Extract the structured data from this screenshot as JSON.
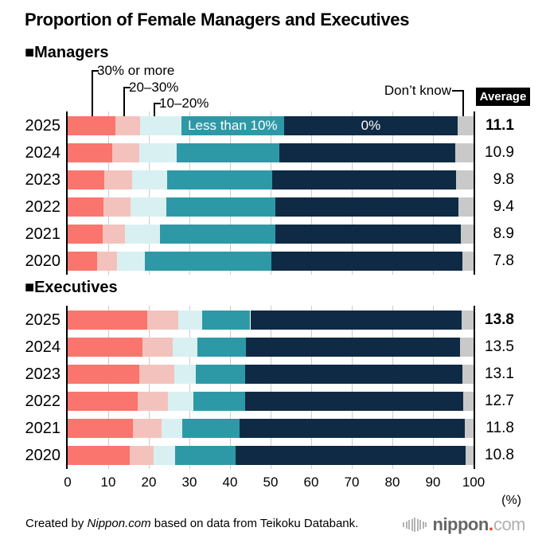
{
  "title": "Proportion of Female Managers and Executives",
  "sections": [
    {
      "heading": "■Managers"
    },
    {
      "heading": "■Executives"
    }
  ],
  "legend": {
    "callout_labels": [
      "30% or more",
      "20–30%",
      "10–20%"
    ],
    "dont_know_label": "Don’t know",
    "average_label": "Average"
  },
  "axis": {
    "ticks": [
      "0",
      "10",
      "20",
      "30",
      "40",
      "50",
      "60",
      "70",
      "80",
      "90",
      "100"
    ],
    "unit": "(%)"
  },
  "chart_data": [
    {
      "type": "bar",
      "stacked": true,
      "orientation": "horizontal",
      "section": "Managers",
      "xlim": [
        0,
        100
      ],
      "categories": [
        "30% or more",
        "20–30%",
        "10–20%",
        "Less than 10%",
        "0%",
        "Don't know"
      ],
      "rows": [
        {
          "year": "2025",
          "values": [
            11.7,
            6.2,
            10.1,
            25.3,
            42.8,
            3.9
          ],
          "average": "11.1",
          "emphasis": true
        },
        {
          "year": "2024",
          "values": [
            10.9,
            6.8,
            9.1,
            25.4,
            43.2,
            4.6
          ],
          "average": "10.9",
          "emphasis": false
        },
        {
          "year": "2023",
          "values": [
            9.1,
            6.8,
            8.6,
            25.9,
            45.3,
            4.3
          ],
          "average": "9.8",
          "emphasis": false
        },
        {
          "year": "2022",
          "values": [
            8.9,
            6.5,
            8.9,
            26.8,
            45.2,
            3.7
          ],
          "average": "9.4",
          "emphasis": false
        },
        {
          "year": "2021",
          "values": [
            8.6,
            5.6,
            8.6,
            28.4,
            45.6,
            3.2
          ],
          "average": "8.9",
          "emphasis": false
        },
        {
          "year": "2020",
          "values": [
            7.2,
            5.0,
            6.9,
            31.1,
            47.1,
            2.7
          ],
          "average": "7.8",
          "emphasis": false
        }
      ],
      "inbar_labels": [
        {
          "row": 0,
          "segment": 3,
          "text": "Less than 10%"
        },
        {
          "row": 0,
          "segment": 4,
          "text": "0%"
        }
      ]
    },
    {
      "type": "bar",
      "stacked": true,
      "orientation": "horizontal",
      "section": "Executives",
      "xlim": [
        0,
        100
      ],
      "categories": [
        "30% or more",
        "20–30%",
        "10–20%",
        "Less than 10%",
        "0%",
        "Don't know"
      ],
      "rows": [
        {
          "year": "2025",
          "values": [
            19.7,
            7.5,
            5.9,
            11.9,
            52.0,
            3.0
          ],
          "average": "13.8",
          "emphasis": true
        },
        {
          "year": "2024",
          "values": [
            18.4,
            7.5,
            6.1,
            11.9,
            52.8,
            3.3
          ],
          "average": "13.5",
          "emphasis": false
        },
        {
          "year": "2023",
          "values": [
            17.7,
            8.6,
            5.2,
            12.3,
            53.5,
            2.7
          ],
          "average": "13.1",
          "emphasis": false
        },
        {
          "year": "2022",
          "values": [
            17.3,
            7.5,
            6.2,
            12.8,
            53.6,
            2.6
          ],
          "average": "12.7",
          "emphasis": false
        },
        {
          "year": "2021",
          "values": [
            16.0,
            7.2,
            5.1,
            14.0,
            55.5,
            2.2
          ],
          "average": "11.8",
          "emphasis": false
        },
        {
          "year": "2020",
          "values": [
            15.2,
            6.0,
            5.3,
            14.8,
            56.8,
            1.9
          ],
          "average": "10.8",
          "emphasis": false
        }
      ],
      "inbar_labels": []
    }
  ],
  "colors": {
    "segment_colors": [
      "#F9756D",
      "#F4C2BD",
      "#D8F0F2",
      "#2E99A6",
      "#0F2A44",
      "#C9C9C9"
    ],
    "gridline": "#CCCCCC",
    "average_badge_bg": "#000000",
    "average_badge_text": "#FFFFFF",
    "logo_dot": "#E8380D"
  },
  "footer": {
    "credit_prefix": "Created by ",
    "credit_source": "Nippon.com",
    "credit_suffix": " based on data from Teikoku Databank."
  }
}
